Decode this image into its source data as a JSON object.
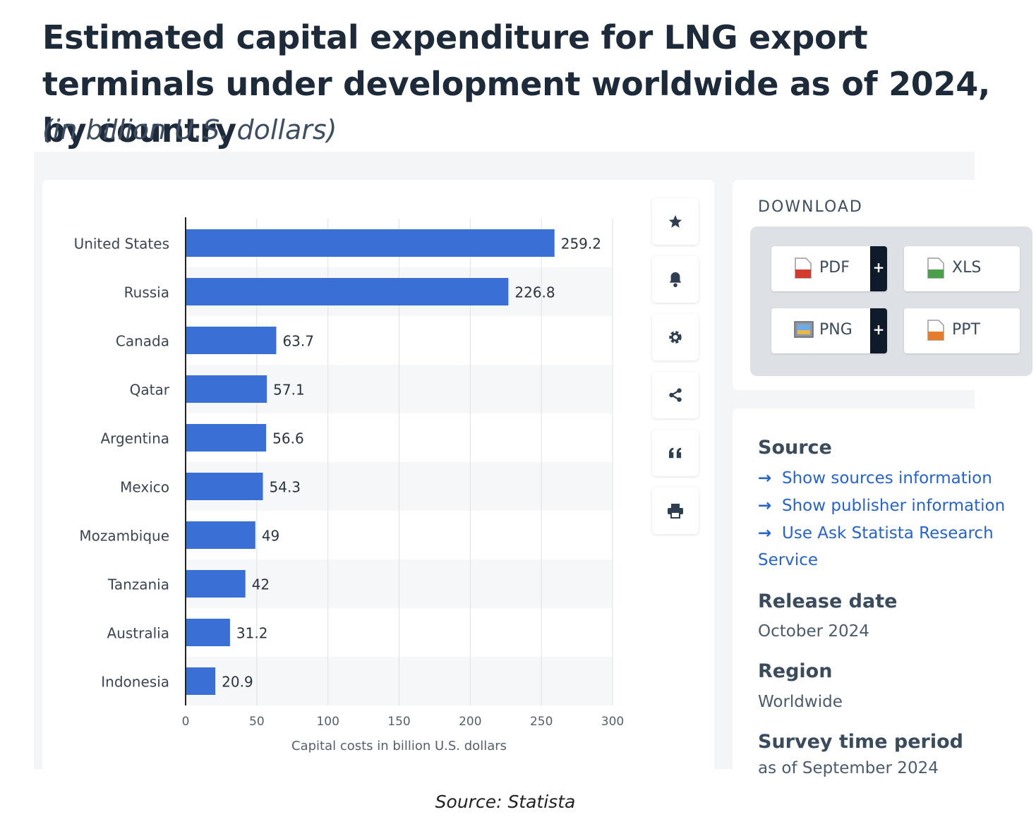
{
  "header": {
    "title": "Estimated capital expenditure for LNG export terminals under development worldwide as of 2024, by country",
    "subtitle": "(in billion U.S. dollars)"
  },
  "chart_data": {
    "type": "bar",
    "orientation": "horizontal",
    "categories": [
      "United States",
      "Russia",
      "Canada",
      "Qatar",
      "Argentina",
      "Mexico",
      "Mozambique",
      "Tanzania",
      "Australia",
      "Indonesia"
    ],
    "values": [
      259.2,
      226.8,
      63.7,
      57.1,
      56.6,
      54.3,
      49,
      42,
      31.2,
      20.9
    ],
    "value_labels": [
      "259.2",
      "226.8",
      "63.7",
      "57.1",
      "56.6",
      "54.3",
      "49",
      "42",
      "31.2",
      "20.9"
    ],
    "xlabel": "Capital costs in billion U.S. dollars",
    "xlim": [
      0,
      300
    ],
    "xticks": [
      0,
      50,
      100,
      150,
      200,
      250,
      300
    ],
    "bar_color": "#3a6fd6",
    "grid": true
  },
  "toolbar": {
    "buttons": [
      {
        "name": "favorite-button",
        "icon": "star-icon"
      },
      {
        "name": "notification-button",
        "icon": "bell-icon"
      },
      {
        "name": "settings-button",
        "icon": "gear-icon"
      },
      {
        "name": "share-button",
        "icon": "share-icon"
      },
      {
        "name": "cite-button",
        "icon": "quote-icon"
      },
      {
        "name": "print-button",
        "icon": "printer-icon"
      }
    ]
  },
  "download": {
    "heading": "DOWNLOAD",
    "pdf_label": "PDF",
    "xls_label": "XLS",
    "png_label": "PNG",
    "ppt_label": "PPT",
    "plus": "+"
  },
  "info": {
    "source_heading": "Source",
    "links": [
      "Show sources information",
      "Show publisher information",
      "Use Ask Statista Research"
    ],
    "link_continuation": "Service",
    "release_heading": "Release date",
    "release_value": "October 2024",
    "region_heading": "Region",
    "region_value": "Worldwide",
    "survey_heading": "Survey time period",
    "survey_value": "as of September 2024"
  },
  "caption": "Source: Statista",
  "colors": {
    "accent": "#2563d0",
    "bar": "#3a6fd6",
    "dark_plus": "#0f1b2b"
  }
}
